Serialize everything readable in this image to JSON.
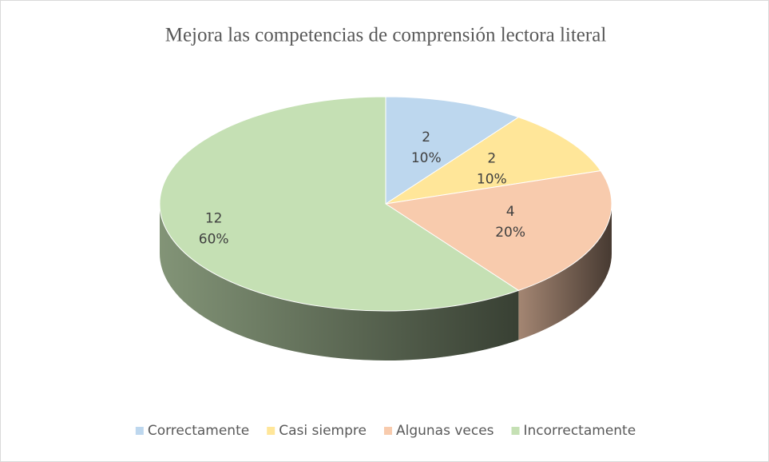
{
  "chart_data": {
    "type": "pie",
    "title": "Mejora las competencias de comprensión lectora literal",
    "categories": [
      "Correctamente",
      "Casi siempre",
      "Algunas veces",
      "Incorrectamente"
    ],
    "values": [
      2,
      2,
      4,
      12
    ],
    "percent_labels": [
      "10%",
      "10%",
      "20%",
      "60%"
    ],
    "colors": [
      "#bdd7ee",
      "#ffe699",
      "#f8cbad",
      "#c5e0b4"
    ],
    "legend": "bottom"
  }
}
